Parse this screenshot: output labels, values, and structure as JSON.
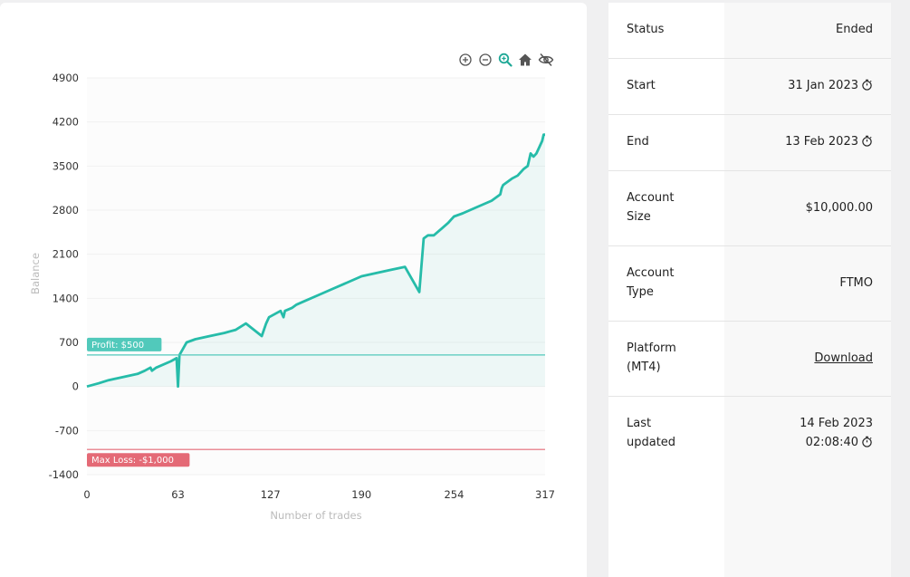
{
  "chart_data": {
    "type": "area",
    "xlabel": "Number of trades",
    "ylabel": "Balance",
    "xlim": [
      0,
      317
    ],
    "ylim": [
      -1400,
      4900
    ],
    "x_ticks": [
      "0",
      "63",
      "127",
      "190",
      "254",
      "317"
    ],
    "y_ticks": [
      "4900",
      "4200",
      "3500",
      "2800",
      "2100",
      "1400",
      "700",
      "0",
      "-700",
      "-1400"
    ],
    "series": [
      {
        "x": [
          0,
          8,
          15,
          25,
          35,
          40,
          44,
          45,
          48,
          58,
          62,
          63,
          64,
          69,
          75,
          85,
          95,
          103,
          110,
          121,
          124,
          126,
          130,
          134,
          136,
          137,
          142,
          145,
          150,
          160,
          170,
          180,
          190,
          200,
          210,
          220,
          230,
          233,
          236,
          240,
          245,
          250,
          252,
          254,
          260,
          270,
          280,
          286,
          287,
          288,
          294,
          298,
          300,
          302,
          305,
          307,
          309,
          311,
          313,
          315,
          316,
          317
        ],
        "values": [
          0,
          50,
          100,
          150,
          200,
          250,
          300,
          250,
          300,
          400,
          450,
          0,
          500,
          700,
          750,
          800,
          850,
          900,
          1000,
          800,
          1000,
          1100,
          1150,
          1200,
          1100,
          1200,
          1250,
          1300,
          1350,
          1450,
          1550,
          1650,
          1750,
          1800,
          1850,
          1900,
          1500,
          2350,
          2400,
          2400,
          2500,
          2600,
          2650,
          2700,
          2750,
          2850,
          2950,
          3050,
          3150,
          3200,
          3300,
          3350,
          3400,
          3450,
          3500,
          3700,
          3650,
          3700,
          3800,
          3900,
          4000,
          4000
        ]
      }
    ],
    "annotations": [
      {
        "label": "Profit: $500",
        "y": 500,
        "color": "#51c9bb"
      },
      {
        "label": "Max Loss: -$1,000",
        "y": -1000,
        "color": "#e46a76"
      }
    ],
    "line_color": "#26bca9"
  },
  "toolbar_icons": [
    "zoom-in-icon",
    "zoom-out-icon",
    "zoom-select-icon",
    "home-icon",
    "hide-icon"
  ],
  "info": {
    "status": {
      "label": "Status",
      "value": "Ended"
    },
    "start": {
      "label": "Start",
      "value": "31 Jan 2023"
    },
    "end": {
      "label": "End",
      "value": "13 Feb 2023"
    },
    "account_size": {
      "label": "Account Size",
      "value": "$10,000.00"
    },
    "account_type": {
      "label": "Account Type",
      "value": "FTMO"
    },
    "platform": {
      "label": "Platform (MT4)",
      "value": "Download"
    },
    "last_updated": {
      "label": "Last updated",
      "value_date": "14 Feb 2023",
      "value_time": "02:08:40"
    }
  }
}
